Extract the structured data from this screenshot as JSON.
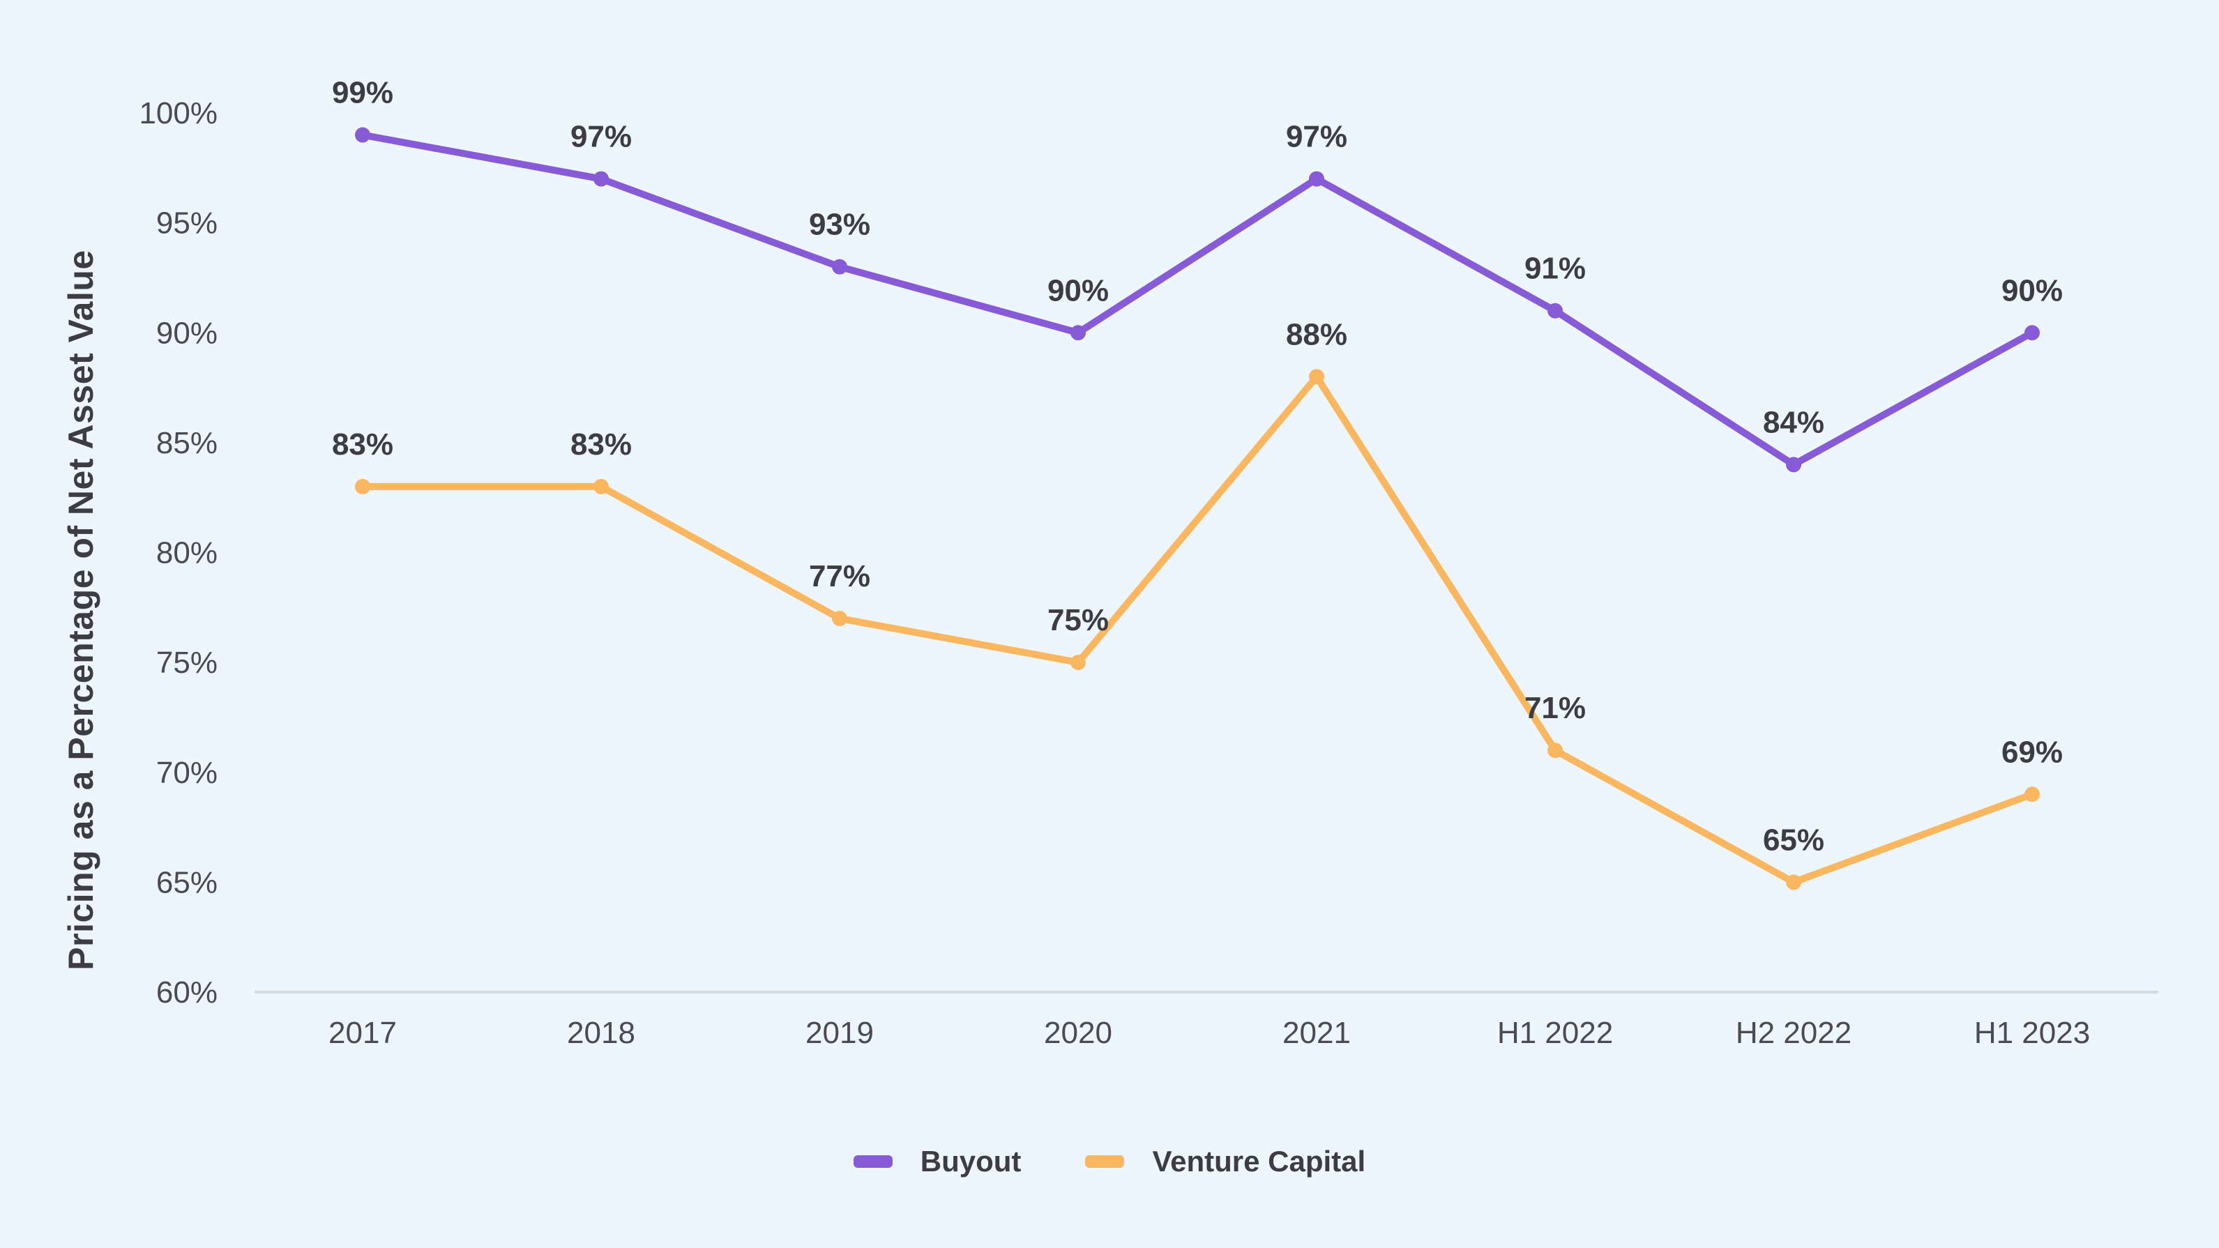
{
  "chart_data": {
    "type": "line",
    "title": "",
    "xlabel": "",
    "ylabel": "Pricing as a Percentage of Net Asset Value",
    "categories": [
      "2017",
      "2018",
      "2019",
      "2020",
      "2021",
      "H1 2022",
      "H2 2022",
      "H1 2023"
    ],
    "series": [
      {
        "name": "Buyout",
        "color": "#875AD7",
        "values": [
          99,
          97,
          93,
          90,
          97,
          91,
          84,
          90
        ],
        "point_labels": [
          "99%",
          "97%",
          "93%",
          "90%",
          "97%",
          "91%",
          "84%",
          "90%"
        ]
      },
      {
        "name": "Venture Capital",
        "color": "#FBB75F",
        "values": [
          83,
          83,
          77,
          75,
          88,
          71,
          65,
          69
        ],
        "point_labels": [
          "83%",
          "83%",
          "77%",
          "75%",
          "88%",
          "71%",
          "65%",
          "69%"
        ]
      }
    ],
    "ylim": [
      60,
      100
    ],
    "y_tick_step": 5,
    "y_tick_labels": [
      "100%",
      "95%",
      "90%",
      "85%",
      "80%",
      "75%",
      "70%",
      "65%",
      "60%"
    ],
    "grid": false,
    "legend_position": "bottom",
    "marker": "circle",
    "colors": {
      "background": "#EDF6FC",
      "axis_line": "#D8DADD",
      "tick_text": "#4B4A52",
      "data_label_text": "#3D3C43"
    }
  }
}
